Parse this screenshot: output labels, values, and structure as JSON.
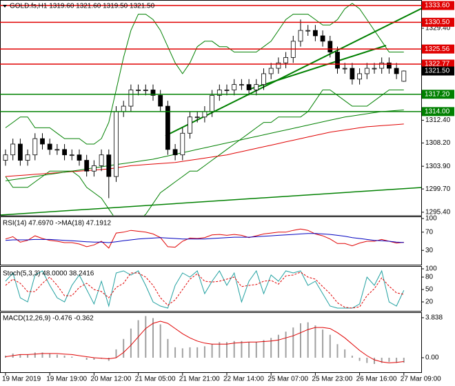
{
  "chart_data": [
    {
      "type": "candlestick",
      "title": "GOLD.fs,H1  1319.60 1321.60 1319.50 1321.50",
      "categories": [
        "19 Mar 2019",
        null,
        null,
        null,
        null,
        null,
        "19 Mar 19:00",
        null,
        null,
        null,
        null,
        null,
        "20 Mar 12:00",
        null,
        null,
        null,
        null,
        null,
        "21 Mar 05:00",
        null,
        null,
        null,
        null,
        null,
        "21 Mar 21:00",
        null,
        null,
        null,
        null,
        null,
        "22 Mar 14:00",
        null,
        null,
        null,
        null,
        null,
        "25 Mar 07:00",
        null,
        null,
        null,
        null,
        null,
        "25 Mar 23:00",
        null,
        null,
        null,
        null,
        null,
        "26 Mar 16:00",
        null,
        null,
        null,
        null,
        null,
        "27 Mar 09:00"
      ],
      "open": [
        1305,
        1306,
        1308,
        1305,
        1306,
        1309,
        1308,
        1307,
        1307,
        1306,
        1306,
        1305,
        1303,
        1304,
        1306,
        1302,
        1314,
        1315,
        1318,
        1318,
        1318,
        1317,
        1315,
        1307,
        1306,
        1310,
        1313,
        1313,
        1314,
        1317,
        1318,
        1318,
        1319,
        1319,
        1318,
        1319,
        1321,
        1322,
        1323,
        1324,
        1327,
        1329,
        1329,
        1328,
        1327,
        1325,
        1322,
        1322,
        1320,
        1321,
        1322,
        1322,
        1323,
        1322,
        1319.6
      ],
      "high": [
        1307,
        1309,
        1309,
        1307,
        1310,
        1310,
        1309,
        1308,
        1308,
        1307,
        1307,
        1306,
        1305,
        1307,
        1307,
        1315,
        1316,
        1319,
        1319,
        1319,
        1319,
        1318,
        1316,
        1308,
        1311,
        1314,
        1314,
        1315,
        1318,
        1319,
        1319,
        1320,
        1320,
        1320,
        1320,
        1322,
        1323,
        1324,
        1325,
        1328,
        1331,
        1330,
        1330,
        1329,
        1328,
        1326,
        1323,
        1323,
        1322,
        1323,
        1323,
        1324,
        1324,
        1323,
        1321.6
      ],
      "low": [
        1304,
        1305,
        1304,
        1304,
        1305,
        1307,
        1306,
        1306,
        1305,
        1305,
        1304,
        1302,
        1302,
        1303,
        1298,
        1301,
        1313,
        1314,
        1317,
        1317,
        1316,
        1314,
        1306,
        1305,
        1305,
        1309,
        1312,
        1312,
        1313,
        1316,
        1317,
        1317,
        1318,
        1317,
        1317,
        1318,
        1320,
        1321,
        1322,
        1323,
        1326,
        1328,
        1327,
        1326,
        1324,
        1321,
        1321,
        1319,
        1319,
        1320,
        1321,
        1321,
        1321,
        1320,
        1319.5
      ],
      "close": [
        1306,
        1308,
        1305,
        1306,
        1309,
        1308,
        1307,
        1307,
        1306,
        1306,
        1305,
        1303,
        1304,
        1306,
        1302,
        1314,
        1315,
        1318,
        1318,
        1318,
        1317,
        1315,
        1307,
        1306,
        1310,
        1313,
        1313,
        1314,
        1317,
        1318,
        1318,
        1319,
        1319,
        1318,
        1319,
        1321,
        1322,
        1323,
        1324,
        1327,
        1329,
        1329,
        1328,
        1327,
        1325,
        1322,
        1322,
        1320,
        1321,
        1322,
        1322,
        1323,
        1322,
        1321,
        1321.5
      ],
      "bull_color": "#ffffff",
      "bear_color": "#000000",
      "lines": [
        {
          "color": "#008000",
          "values": [
            1311,
            1312,
            1313,
            1313,
            1311,
            1311,
            1311,
            1310,
            1309,
            1309,
            1309,
            1308,
            1308,
            1309,
            1312,
            1318,
            1324,
            1329,
            1332,
            1332,
            1331,
            1329,
            1326,
            1323,
            1321,
            1323,
            1326,
            1327,
            1327,
            1326,
            1326,
            1325,
            1325,
            1325,
            1325,
            1326,
            1327,
            1329,
            1331,
            1332,
            1332,
            1332,
            1331,
            1330,
            1330,
            1331,
            1333,
            1334,
            1333,
            1331,
            1329,
            1327,
            1325,
            1325,
            1325
          ]
        },
        {
          "color": "#008000",
          "values": [
            1302,
            1300,
            1300,
            1300,
            1301,
            1302,
            1303,
            1303,
            1303,
            1303,
            1302,
            1300,
            1299,
            1298,
            1296,
            1294,
            1293,
            1293,
            1294,
            1295,
            1297,
            1299,
            1300,
            1301,
            1302,
            1303,
            1303,
            1304,
            1305,
            1306,
            1307,
            1308,
            1309,
            1310,
            1311,
            1312,
            1312,
            1313,
            1313,
            1313,
            1313,
            1314,
            1316,
            1318,
            1318,
            1317,
            1316,
            1315,
            1315,
            1315,
            1316,
            1317,
            1318,
            1318,
            1318
          ]
        },
        {
          "color": "#e00000",
          "values": [
            1302,
            1302.1,
            1302.2,
            1302.3,
            1302.4,
            1302.5,
            1302.6,
            1302.7,
            1302.8,
            1302.9,
            1303,
            1303.1,
            1303.2,
            1303.3,
            1303.4,
            1303.6,
            1303.8,
            1304,
            1304.1,
            1304.2,
            1304.3,
            1304.4,
            1304.5,
            1304.6,
            1304.8,
            1305,
            1305.2,
            1305.4,
            1305.6,
            1305.8,
            1306,
            1306.3,
            1306.6,
            1306.9,
            1307.2,
            1307.5,
            1307.8,
            1308.1,
            1308.4,
            1308.7,
            1309,
            1309.3,
            1309.6,
            1309.9,
            1310.2,
            1310.4,
            1310.6,
            1310.8,
            1311,
            1311.2,
            1311.3,
            1311.4,
            1311.5,
            1311.6,
            1311.7
          ]
        },
        {
          "color": "#008000",
          "values": [
            1301.2,
            1301.4,
            1301.6,
            1301.8,
            1302,
            1302.2,
            1302.4,
            1302.6,
            1302.8,
            1303,
            1303.2,
            1303.4,
            1303.6,
            1303.8,
            1304,
            1304.2,
            1304.4,
            1304.6,
            1304.8,
            1305,
            1305.2,
            1305.5,
            1305.8,
            1306.1,
            1306.4,
            1306.7,
            1307,
            1307.3,
            1307.6,
            1307.9,
            1308.2,
            1308.5,
            1308.8,
            1309.1,
            1309.4,
            1309.7,
            1310,
            1310.3,
            1310.6,
            1310.9,
            1311.2,
            1311.5,
            1311.8,
            1312.1,
            1312.4,
            1312.7,
            1313,
            1313.2,
            1313.4,
            1313.6,
            1313.8,
            1314,
            1314.1,
            1314.2,
            1314.3
          ]
        }
      ],
      "levels": [
        {
          "value": 1333.6,
          "label": "1333.60",
          "color": "#e00000"
        },
        {
          "value": 1330.5,
          "label": "1330.50",
          "color": "#e00000"
        },
        {
          "value": 1325.56,
          "label": "1325.56",
          "color": "#e00000"
        },
        {
          "value": 1322.77,
          "label": "1322.77",
          "color": "#e00000"
        },
        {
          "value": 1317.2,
          "label": "1317.20",
          "color": "#008000"
        },
        {
          "value": 1314.0,
          "label": "1314.00",
          "color": "#008000"
        }
      ],
      "current": {
        "value": 1321.5,
        "label": "1321.50"
      },
      "ylim": [
        1294.75,
        1334.62
      ],
      "yticks": [
        {
          "value": 1329.4,
          "label": "1329.40"
        },
        {
          "value": 1312.4,
          "label": "1312.40"
        },
        {
          "value": 1308.2,
          "label": "1308.20"
        },
        {
          "value": 1303.9,
          "label": "1303.90"
        },
        {
          "value": 1299.7,
          "label": "1299.70"
        },
        {
          "value": 1295.4,
          "label": "1295.40"
        }
      ]
    },
    {
      "type": "line",
      "title": "RSI(14) 47.6970 ->MA(18) 47.1912",
      "series": [
        {
          "color": "#e00000",
          "values": [
            55,
            60,
            48,
            52,
            62,
            56,
            52,
            50,
            47,
            47,
            44,
            38,
            42,
            50,
            35,
            68,
            70,
            74,
            72,
            70,
            66,
            58,
            38,
            37,
            50,
            57,
            56,
            58,
            64,
            65,
            63,
            65,
            63,
            58,
            62,
            66,
            68,
            70,
            70,
            74,
            77,
            74,
            66,
            62,
            55,
            45,
            45,
            40,
            46,
            50,
            50,
            54,
            50,
            46,
            47.697
          ]
        },
        {
          "color": "#0000c0",
          "values": [
            52,
            53,
            53,
            53,
            54,
            54,
            54,
            53,
            52,
            51,
            50,
            49,
            48,
            48,
            47,
            49,
            51,
            53,
            55,
            56,
            57,
            58,
            57,
            56,
            55,
            55,
            55,
            55,
            56,
            57,
            58,
            59,
            59,
            59,
            60,
            61,
            62,
            63,
            64,
            65,
            66,
            67,
            67,
            66,
            65,
            63,
            61,
            58,
            56,
            54,
            52,
            51,
            50,
            48,
            47.1912
          ]
        }
      ],
      "ylim": [
        0,
        100
      ],
      "yticks": [
        100,
        70,
        30
      ]
    },
    {
      "type": "line",
      "title": "Stoch(5,3,3) 48.0000 38.2416",
      "series": [
        {
          "color": "#20a0a0",
          "values": [
            70,
            90,
            30,
            20,
            85,
            95,
            60,
            30,
            20,
            60,
            85,
            50,
            15,
            70,
            10,
            90,
            95,
            85,
            95,
            60,
            20,
            10,
            5,
            60,
            90,
            80,
            95,
            40,
            70,
            95,
            60,
            90,
            20,
            70,
            95,
            40,
            85,
            70,
            95,
            90,
            95,
            60,
            70,
            40,
            10,
            5,
            5,
            5,
            15,
            80,
            60,
            95,
            20,
            10,
            48
          ]
        },
        {
          "color": "#e00000",
          "dashed": true,
          "values": [
            60,
            75,
            65,
            45,
            45,
            65,
            80,
            60,
            35,
            35,
            55,
            65,
            50,
            45,
            30,
            55,
            65,
            90,
            90,
            80,
            60,
            30,
            12,
            25,
            50,
            75,
            88,
            70,
            68,
            70,
            75,
            80,
            57,
            60,
            62,
            70,
            72,
            63,
            83,
            85,
            92,
            80,
            75,
            57,
            40,
            18,
            7,
            5,
            8,
            35,
            52,
            78,
            58,
            42,
            38.2416
          ]
        }
      ],
      "ylim": [
        0,
        100
      ],
      "yticks": [
        100,
        80,
        50,
        20
      ]
    },
    {
      "type": "macd",
      "title": "MACD(12,26,9) -0.476 -0.362",
      "histogram": {
        "color": "#a0a0a0",
        "values": [
          0.2,
          0.4,
          0.3,
          0.3,
          0.5,
          0.5,
          0.4,
          0.3,
          0.2,
          0.1,
          0,
          -0.2,
          -0.2,
          -0.1,
          -0.3,
          0.8,
          1.8,
          2.8,
          3.6,
          4.0,
          3.8,
          3.2,
          1.8,
          1.0,
          0.9,
          1.0,
          1.0,
          1.1,
          1.3,
          1.5,
          1.5,
          1.6,
          1.6,
          1.5,
          1.5,
          1.7,
          1.9,
          2.2,
          2.5,
          2.9,
          3.3,
          3.4,
          3.1,
          2.7,
          2.2,
          1.3,
          0.8,
          0.2,
          -0.3,
          -0.5,
          -0.6,
          -0.5,
          -0.4,
          -0.5,
          -0.476
        ]
      },
      "signal": {
        "color": "#e00000",
        "values": [
          0.1,
          0.2,
          0.3,
          0.3,
          0.35,
          0.4,
          0.4,
          0.4,
          0.35,
          0.3,
          0.2,
          0.1,
          0,
          -0.05,
          -0.1,
          0,
          0.5,
          1.2,
          2.0,
          2.8,
          3.3,
          3.5,
          3.3,
          2.8,
          2.3,
          1.9,
          1.6,
          1.4,
          1.3,
          1.3,
          1.3,
          1.4,
          1.45,
          1.5,
          1.5,
          1.55,
          1.6,
          1.7,
          1.9,
          2.1,
          2.4,
          2.7,
          2.9,
          2.9,
          2.8,
          2.4,
          1.9,
          1.3,
          0.7,
          0.2,
          -0.2,
          -0.4,
          -0.5,
          -0.45,
          -0.362
        ]
      },
      "ylim": [
        -1.39,
        4.23
      ],
      "yticks": [
        3.838,
        {
          "value": 0,
          "label": "0.00"
        }
      ]
    }
  ]
}
